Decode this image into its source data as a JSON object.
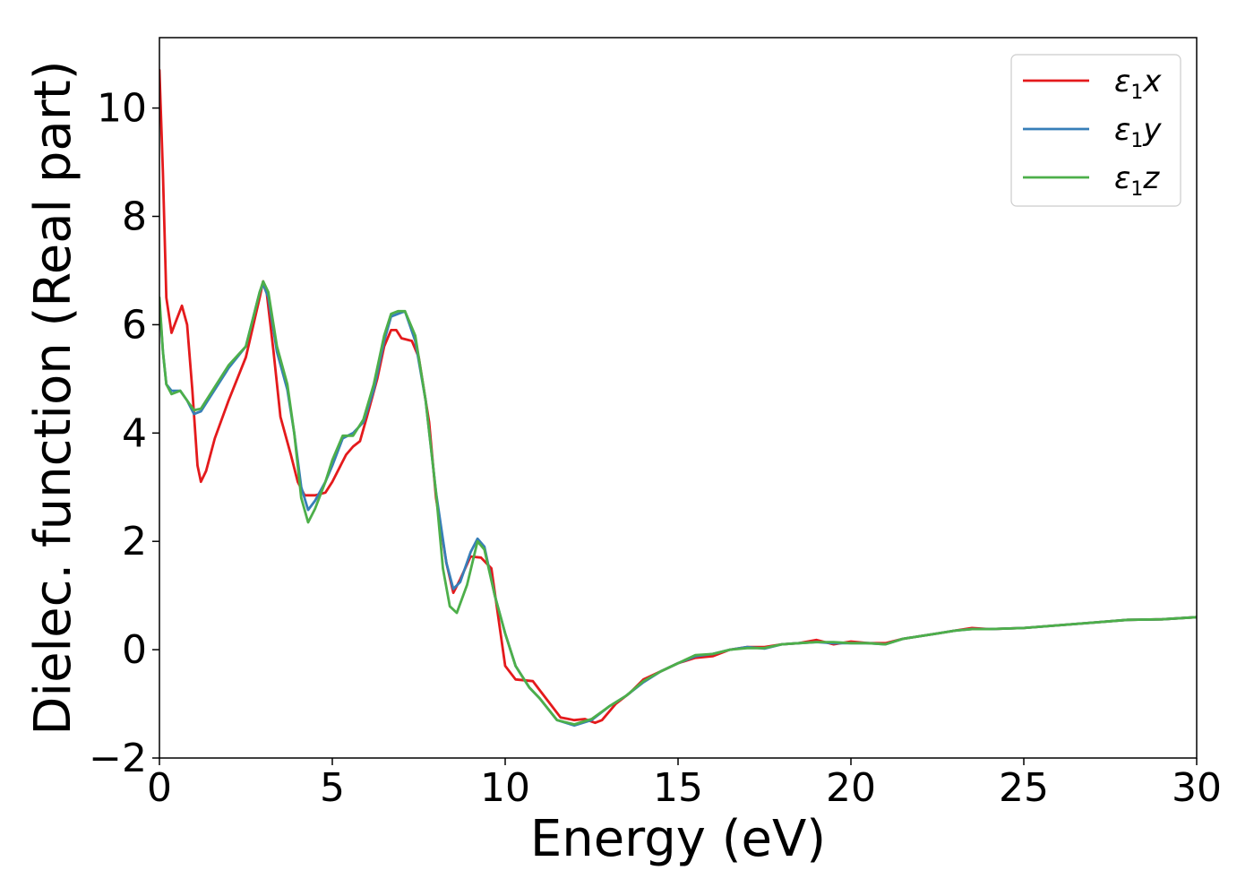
{
  "chart_data": {
    "type": "line",
    "title": "",
    "xlabel": "Energy (eV)",
    "ylabel": "Dielec. function (Real part)",
    "xlim": [
      0,
      30
    ],
    "ylim": [
      -2,
      11.3
    ],
    "x_ticks": [
      0,
      5,
      10,
      15,
      20,
      25,
      30
    ],
    "x_tick_labels": [
      "0",
      "5",
      "10",
      "15",
      "20",
      "25",
      "30"
    ],
    "y_ticks": [
      -2,
      0,
      2,
      4,
      6,
      8,
      10
    ],
    "y_tick_labels": [
      "−2",
      "0",
      "2",
      "4",
      "6",
      "8",
      "10"
    ],
    "grid": false,
    "legend_position": "top-right",
    "series": [
      {
        "name": "ε1x",
        "label_symbol": "ε",
        "label_sub": "1",
        "label_axis": "x",
        "color": "#e41a1c",
        "points": [
          [
            0,
            10.7
          ],
          [
            0.1,
            8.8
          ],
          [
            0.2,
            6.5
          ],
          [
            0.35,
            5.85
          ],
          [
            0.5,
            6.1
          ],
          [
            0.65,
            6.35
          ],
          [
            0.8,
            6.0
          ],
          [
            0.95,
            4.8
          ],
          [
            1.1,
            3.4
          ],
          [
            1.2,
            3.1
          ],
          [
            1.35,
            3.3
          ],
          [
            1.6,
            3.9
          ],
          [
            2.0,
            4.6
          ],
          [
            2.5,
            5.4
          ],
          [
            2.9,
            6.5
          ],
          [
            3.0,
            6.8
          ],
          [
            3.1,
            6.6
          ],
          [
            3.3,
            5.5
          ],
          [
            3.5,
            4.3
          ],
          [
            3.8,
            3.6
          ],
          [
            4.0,
            3.1
          ],
          [
            4.2,
            2.85
          ],
          [
            4.5,
            2.85
          ],
          [
            4.8,
            2.9
          ],
          [
            5.0,
            3.1
          ],
          [
            5.4,
            3.6
          ],
          [
            5.6,
            3.75
          ],
          [
            5.8,
            3.85
          ],
          [
            6.0,
            4.3
          ],
          [
            6.3,
            5.0
          ],
          [
            6.5,
            5.6
          ],
          [
            6.7,
            5.9
          ],
          [
            6.85,
            5.9
          ],
          [
            7.0,
            5.75
          ],
          [
            7.3,
            5.7
          ],
          [
            7.5,
            5.4
          ],
          [
            7.8,
            4.2
          ],
          [
            8.0,
            2.8
          ],
          [
            8.3,
            1.6
          ],
          [
            8.5,
            1.05
          ],
          [
            8.7,
            1.3
          ],
          [
            9.0,
            1.72
          ],
          [
            9.3,
            1.7
          ],
          [
            9.6,
            1.5
          ],
          [
            9.8,
            0.6
          ],
          [
            10.0,
            -0.3
          ],
          [
            10.3,
            -0.55
          ],
          [
            10.8,
            -0.58
          ],
          [
            11.0,
            -0.75
          ],
          [
            11.3,
            -1.0
          ],
          [
            11.6,
            -1.25
          ],
          [
            12.0,
            -1.3
          ],
          [
            12.3,
            -1.28
          ],
          [
            12.6,
            -1.35
          ],
          [
            12.8,
            -1.3
          ],
          [
            13.2,
            -1.0
          ],
          [
            13.6,
            -0.8
          ],
          [
            14.0,
            -0.55
          ],
          [
            14.5,
            -0.4
          ],
          [
            15.0,
            -0.25
          ],
          [
            15.5,
            -0.15
          ],
          [
            16.0,
            -0.12
          ],
          [
            16.5,
            0.0
          ],
          [
            17.0,
            0.05
          ],
          [
            17.5,
            0.05
          ],
          [
            18.0,
            0.1
          ],
          [
            18.5,
            0.12
          ],
          [
            19.0,
            0.18
          ],
          [
            19.5,
            0.1
          ],
          [
            20.0,
            0.15
          ],
          [
            20.5,
            0.12
          ],
          [
            21.0,
            0.12
          ],
          [
            21.5,
            0.2
          ],
          [
            22.0,
            0.25
          ],
          [
            22.5,
            0.3
          ],
          [
            23.0,
            0.35
          ],
          [
            23.5,
            0.4
          ],
          [
            24.0,
            0.38
          ],
          [
            25.0,
            0.4
          ],
          [
            26.0,
            0.45
          ],
          [
            27.0,
            0.5
          ],
          [
            28.0,
            0.55
          ],
          [
            29.0,
            0.56
          ],
          [
            30.0,
            0.6
          ]
        ]
      },
      {
        "name": "ε1y",
        "label_symbol": "ε",
        "label_sub": "1",
        "label_axis": "y",
        "color": "#377eb8",
        "points": [
          [
            0,
            6.4
          ],
          [
            0.1,
            5.5
          ],
          [
            0.2,
            4.9
          ],
          [
            0.35,
            4.78
          ],
          [
            0.6,
            4.78
          ],
          [
            0.8,
            4.6
          ],
          [
            1.0,
            4.35
          ],
          [
            1.2,
            4.4
          ],
          [
            1.6,
            4.8
          ],
          [
            2.0,
            5.2
          ],
          [
            2.5,
            5.6
          ],
          [
            2.9,
            6.6
          ],
          [
            3.0,
            6.75
          ],
          [
            3.15,
            6.5
          ],
          [
            3.4,
            5.5
          ],
          [
            3.7,
            4.8
          ],
          [
            3.9,
            4.0
          ],
          [
            4.1,
            3.0
          ],
          [
            4.3,
            2.58
          ],
          [
            4.5,
            2.75
          ],
          [
            4.8,
            3.1
          ],
          [
            5.0,
            3.4
          ],
          [
            5.3,
            3.9
          ],
          [
            5.6,
            4.0
          ],
          [
            5.9,
            4.2
          ],
          [
            6.2,
            4.8
          ],
          [
            6.5,
            5.7
          ],
          [
            6.7,
            6.15
          ],
          [
            6.9,
            6.2
          ],
          [
            7.1,
            6.25
          ],
          [
            7.4,
            5.7
          ],
          [
            7.7,
            4.6
          ],
          [
            8.0,
            2.9
          ],
          [
            8.3,
            1.6
          ],
          [
            8.5,
            1.12
          ],
          [
            8.7,
            1.25
          ],
          [
            9.0,
            1.8
          ],
          [
            9.2,
            2.05
          ],
          [
            9.4,
            1.9
          ],
          [
            9.7,
            1.0
          ],
          [
            10.0,
            0.3
          ],
          [
            10.3,
            -0.3
          ],
          [
            10.7,
            -0.7
          ],
          [
            11.0,
            -0.9
          ],
          [
            11.5,
            -1.3
          ],
          [
            12.0,
            -1.4
          ],
          [
            12.5,
            -1.3
          ],
          [
            13.0,
            -1.05
          ],
          [
            13.5,
            -0.85
          ],
          [
            14.0,
            -0.6
          ],
          [
            14.5,
            -0.4
          ],
          [
            15.0,
            -0.25
          ],
          [
            15.5,
            -0.12
          ],
          [
            16.0,
            -0.08
          ],
          [
            16.5,
            0.0
          ],
          [
            17.0,
            0.05
          ],
          [
            17.5,
            0.02
          ],
          [
            18.0,
            0.1
          ],
          [
            18.5,
            0.12
          ],
          [
            19.0,
            0.14
          ],
          [
            19.5,
            0.12
          ],
          [
            20.0,
            0.12
          ],
          [
            20.5,
            0.12
          ],
          [
            21.0,
            0.1
          ],
          [
            21.5,
            0.2
          ],
          [
            22.0,
            0.25
          ],
          [
            22.5,
            0.3
          ],
          [
            23.0,
            0.35
          ],
          [
            23.5,
            0.38
          ],
          [
            24.0,
            0.38
          ],
          [
            25.0,
            0.4
          ],
          [
            26.0,
            0.45
          ],
          [
            27.0,
            0.5
          ],
          [
            28.0,
            0.55
          ],
          [
            29.0,
            0.56
          ],
          [
            30.0,
            0.6
          ]
        ]
      },
      {
        "name": "ε1z",
        "label_symbol": "ε",
        "label_sub": "1",
        "label_axis": "z",
        "color": "#4daf4a",
        "points": [
          [
            0,
            6.5
          ],
          [
            0.1,
            5.5
          ],
          [
            0.2,
            4.9
          ],
          [
            0.35,
            4.72
          ],
          [
            0.6,
            4.78
          ],
          [
            0.8,
            4.6
          ],
          [
            1.0,
            4.42
          ],
          [
            1.2,
            4.45
          ],
          [
            1.6,
            4.85
          ],
          [
            2.0,
            5.25
          ],
          [
            2.5,
            5.6
          ],
          [
            2.9,
            6.6
          ],
          [
            3.0,
            6.8
          ],
          [
            3.15,
            6.6
          ],
          [
            3.4,
            5.6
          ],
          [
            3.7,
            4.9
          ],
          [
            3.9,
            4.0
          ],
          [
            4.1,
            2.8
          ],
          [
            4.3,
            2.35
          ],
          [
            4.5,
            2.6
          ],
          [
            4.8,
            3.1
          ],
          [
            5.0,
            3.5
          ],
          [
            5.3,
            3.95
          ],
          [
            5.6,
            3.95
          ],
          [
            5.9,
            4.25
          ],
          [
            6.2,
            4.9
          ],
          [
            6.5,
            5.8
          ],
          [
            6.7,
            6.2
          ],
          [
            6.9,
            6.25
          ],
          [
            7.1,
            6.25
          ],
          [
            7.4,
            5.8
          ],
          [
            7.7,
            4.6
          ],
          [
            8.0,
            2.9
          ],
          [
            8.2,
            1.5
          ],
          [
            8.4,
            0.8
          ],
          [
            8.6,
            0.68
          ],
          [
            8.9,
            1.2
          ],
          [
            9.2,
            2.0
          ],
          [
            9.4,
            1.85
          ],
          [
            9.7,
            1.0
          ],
          [
            10.0,
            0.3
          ],
          [
            10.3,
            -0.3
          ],
          [
            10.7,
            -0.7
          ],
          [
            11.0,
            -0.9
          ],
          [
            11.5,
            -1.3
          ],
          [
            12.0,
            -1.38
          ],
          [
            12.5,
            -1.28
          ],
          [
            13.0,
            -1.05
          ],
          [
            13.5,
            -0.85
          ],
          [
            14.0,
            -0.58
          ],
          [
            14.5,
            -0.4
          ],
          [
            15.0,
            -0.25
          ],
          [
            15.5,
            -0.1
          ],
          [
            16.0,
            -0.08
          ],
          [
            16.5,
            0.0
          ],
          [
            17.0,
            0.03
          ],
          [
            17.5,
            0.03
          ],
          [
            18.0,
            0.1
          ],
          [
            18.5,
            0.12
          ],
          [
            19.0,
            0.14
          ],
          [
            19.5,
            0.14
          ],
          [
            20.0,
            0.12
          ],
          [
            20.5,
            0.12
          ],
          [
            21.0,
            0.1
          ],
          [
            21.5,
            0.2
          ],
          [
            22.0,
            0.25
          ],
          [
            22.5,
            0.3
          ],
          [
            23.0,
            0.35
          ],
          [
            23.5,
            0.38
          ],
          [
            24.0,
            0.38
          ],
          [
            25.0,
            0.4
          ],
          [
            26.0,
            0.45
          ],
          [
            27.0,
            0.5
          ],
          [
            28.0,
            0.55
          ],
          [
            29.0,
            0.56
          ],
          [
            30.0,
            0.6
          ]
        ]
      }
    ]
  }
}
